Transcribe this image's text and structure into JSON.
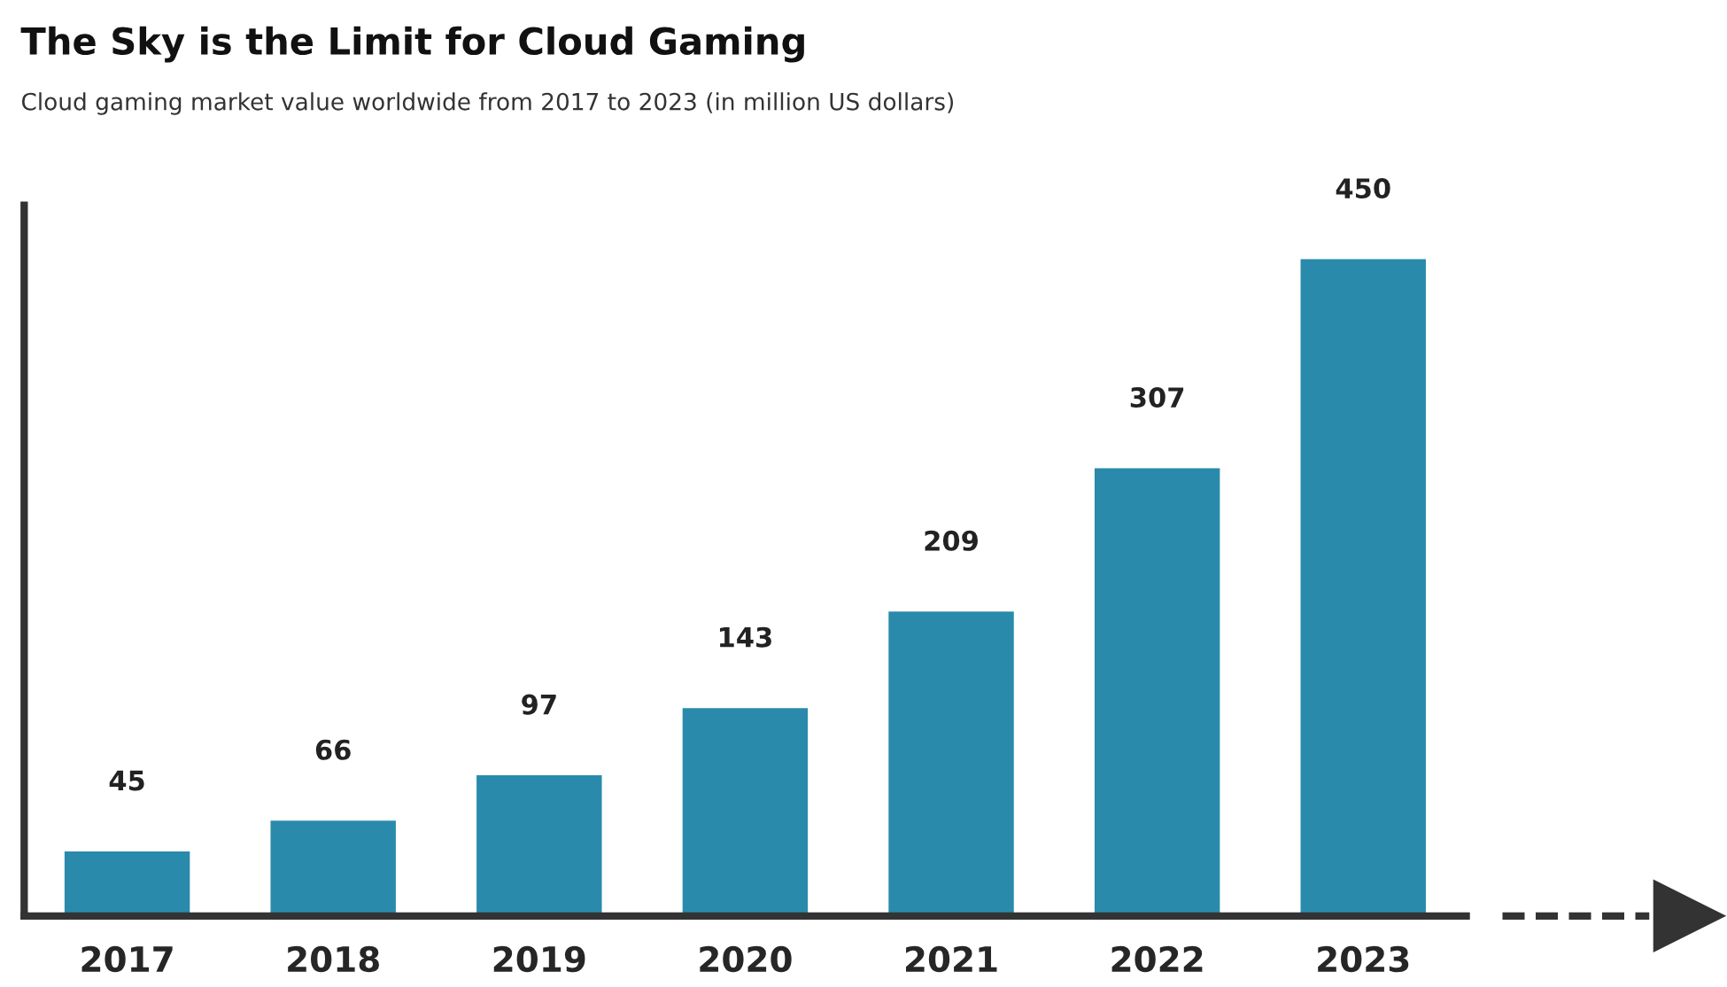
{
  "chart_data": {
    "type": "bar",
    "title": "The Sky is the Limit for Cloud Gaming",
    "subtitle": "Cloud gaming market value worldwide from 2017 to 2023 (in million US dollars)",
    "categories": [
      "2017",
      "2018",
      "2019",
      "2020",
      "2021",
      "2022",
      "2023"
    ],
    "values": [
      45,
      66,
      97,
      143,
      209,
      307,
      450
    ],
    "color": "#2a8aab",
    "data_labels": true,
    "grid": false,
    "legend": false
  }
}
